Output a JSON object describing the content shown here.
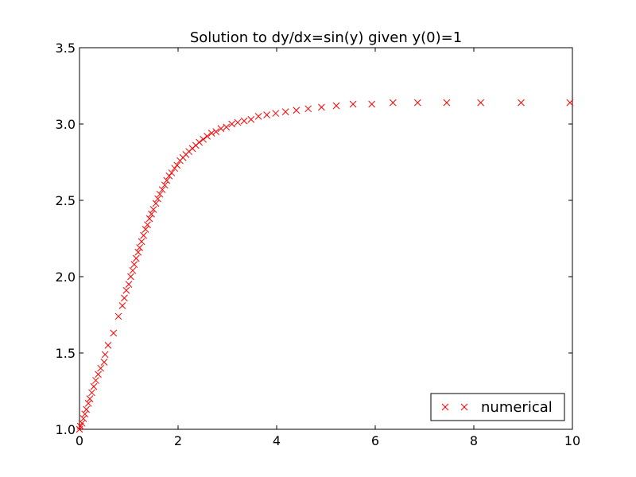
{
  "chart_data": {
    "type": "scatter",
    "title": "Solution to dy/dx=sin(y) given y(0)=1",
    "xlabel": "",
    "ylabel": "",
    "xlim": [
      0,
      10
    ],
    "ylim": [
      1.0,
      3.5
    ],
    "x_ticks": [
      "0",
      "2",
      "4",
      "6",
      "8",
      "10"
    ],
    "y_ticks": [
      "1.0",
      "1.5",
      "2.0",
      "2.5",
      "3.0",
      "3.5"
    ],
    "grid": false,
    "legend_position": "lower-right",
    "marker": "x",
    "series": [
      {
        "name": "numerical",
        "color": "#ff0000",
        "points": [
          [
            0.0,
            1.0
          ],
          [
            0.02,
            1.02
          ],
          [
            0.05,
            1.04
          ],
          [
            0.08,
            1.07
          ],
          [
            0.11,
            1.1
          ],
          [
            0.14,
            1.13
          ],
          [
            0.18,
            1.17
          ],
          [
            0.21,
            1.2
          ],
          [
            0.25,
            1.24
          ],
          [
            0.29,
            1.28
          ],
          [
            0.33,
            1.32
          ],
          [
            0.38,
            1.36
          ],
          [
            0.43,
            1.4
          ],
          [
            0.5,
            1.44
          ],
          [
            0.52,
            1.49
          ],
          [
            0.58,
            1.55
          ],
          [
            0.69,
            1.63
          ],
          [
            0.79,
            1.74
          ],
          [
            0.87,
            1.81
          ],
          [
            0.91,
            1.86
          ],
          [
            0.95,
            1.91
          ],
          [
            1.0,
            1.95
          ],
          [
            1.04,
            2.0
          ],
          [
            1.08,
            2.04
          ],
          [
            1.11,
            2.08
          ],
          [
            1.15,
            2.12
          ],
          [
            1.19,
            2.16
          ],
          [
            1.22,
            2.19
          ],
          [
            1.26,
            2.23
          ],
          [
            1.3,
            2.27
          ],
          [
            1.34,
            2.31
          ],
          [
            1.38,
            2.34
          ],
          [
            1.42,
            2.38
          ],
          [
            1.46,
            2.41
          ],
          [
            1.5,
            2.44
          ],
          [
            1.55,
            2.48
          ],
          [
            1.59,
            2.51
          ],
          [
            1.63,
            2.54
          ],
          [
            1.68,
            2.57
          ],
          [
            1.73,
            2.6
          ],
          [
            1.77,
            2.63
          ],
          [
            1.82,
            2.66
          ],
          [
            1.87,
            2.68
          ],
          [
            1.93,
            2.71
          ],
          [
            1.98,
            2.73
          ],
          [
            2.04,
            2.76
          ],
          [
            2.1,
            2.78
          ],
          [
            2.16,
            2.8
          ],
          [
            2.22,
            2.82
          ],
          [
            2.29,
            2.84
          ],
          [
            2.36,
            2.86
          ],
          [
            2.43,
            2.88
          ],
          [
            2.51,
            2.9
          ],
          [
            2.59,
            2.92
          ],
          [
            2.68,
            2.94
          ],
          [
            2.77,
            2.95
          ],
          [
            2.87,
            2.97
          ],
          [
            2.98,
            2.98
          ],
          [
            3.09,
            3.0
          ],
          [
            3.21,
            3.01
          ],
          [
            3.34,
            3.02
          ],
          [
            3.48,
            3.03
          ],
          [
            3.63,
            3.05
          ],
          [
            3.8,
            3.06
          ],
          [
            3.98,
            3.07
          ],
          [
            4.18,
            3.08
          ],
          [
            4.4,
            3.09
          ],
          [
            4.64,
            3.1
          ],
          [
            4.91,
            3.11
          ],
          [
            5.21,
            3.12
          ],
          [
            5.55,
            3.13
          ],
          [
            5.93,
            3.13
          ],
          [
            6.36,
            3.14
          ],
          [
            6.86,
            3.14
          ],
          [
            7.45,
            3.14
          ],
          [
            8.14,
            3.14
          ],
          [
            8.96,
            3.14
          ],
          [
            9.95,
            3.14
          ]
        ]
      }
    ]
  }
}
